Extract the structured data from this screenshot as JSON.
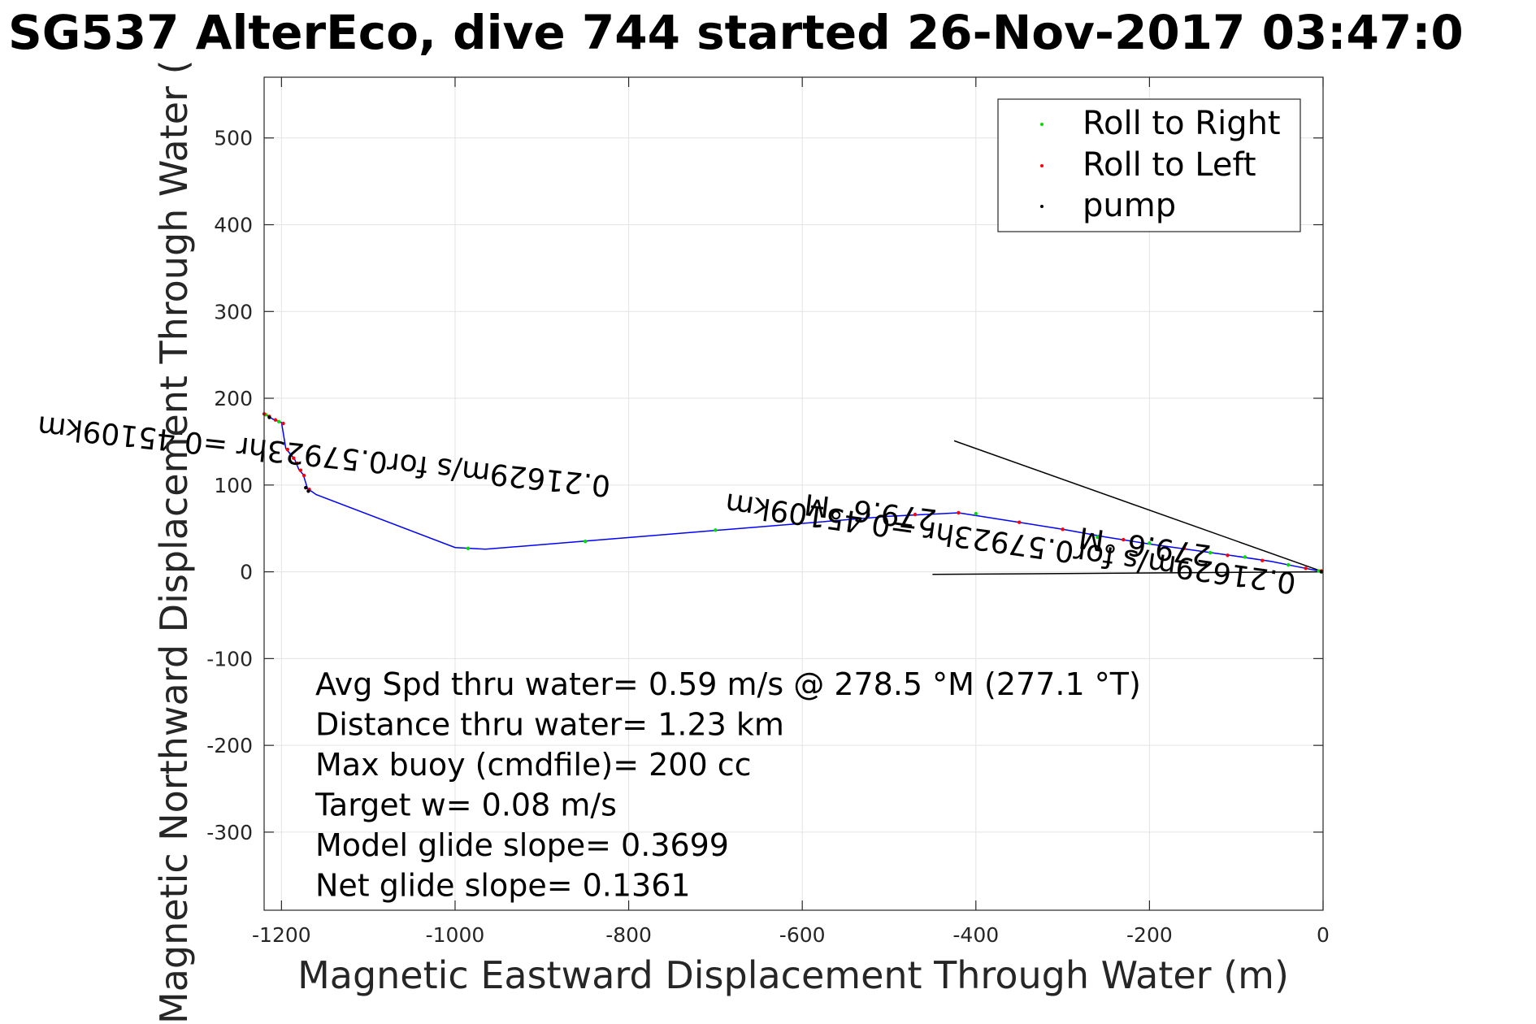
{
  "chart_data": {
    "type": "scatter",
    "title": "SG537 AlterEco, dive 744 started 26-Nov-2017 03:47:0",
    "xlabel": "Magnetic Eastward Displacement Through Water (m)",
    "ylabel": "Magnetic Northward Displacement Through Water (",
    "xlim": [
      -1220,
      0
    ],
    "ylim": [
      -390,
      570
    ],
    "xticks": [
      -1200,
      -1000,
      -800,
      -600,
      -400,
      -200,
      0
    ],
    "yticks": [
      -300,
      -200,
      -100,
      0,
      100,
      200,
      300,
      400,
      500
    ],
    "xtick_labels": [
      "-1200",
      "-1000",
      "-800",
      "-600",
      "-400",
      "-200",
      "0"
    ],
    "ytick_labels": [
      "-300",
      "-200",
      "-100",
      "0",
      "100",
      "200",
      "300",
      "400",
      "500"
    ],
    "grid": true,
    "legend_position": "top-right",
    "legend": [
      {
        "label": "Roll to Right",
        "color": "#00dd00"
      },
      {
        "label": "Roll to Left",
        "color": "#ff0000"
      },
      {
        "label": "pump",
        "color": "#000000"
      }
    ],
    "track": {
      "color": "#0000ff",
      "points": [
        [
          -1219,
          182
        ],
        [
          -1210,
          176
        ],
        [
          -1200,
          172
        ],
        [
          -1195,
          142
        ],
        [
          -1185,
          130
        ],
        [
          -1180,
          118
        ],
        [
          -1175,
          112
        ],
        [
          -1170,
          96
        ],
        [
          -1160,
          89
        ],
        [
          -1000,
          28
        ],
        [
          -965,
          26
        ],
        [
          -500,
          64
        ],
        [
          -420,
          68
        ],
        [
          -350,
          57
        ],
        [
          -300,
          49
        ],
        [
          -250,
          40
        ],
        [
          -200,
          32
        ],
        [
          -150,
          25
        ],
        [
          -100,
          18
        ],
        [
          -60,
          12
        ],
        [
          -30,
          6
        ],
        [
          0,
          0
        ]
      ]
    },
    "roll_right": [
      [
        -1218,
        181
      ],
      [
        -1203,
        173
      ],
      [
        -985,
        27
      ],
      [
        -850,
        35
      ],
      [
        -700,
        48
      ],
      [
        -400,
        67
      ],
      [
        -260,
        40
      ],
      [
        -200,
        33
      ],
      [
        -130,
        22
      ],
      [
        -90,
        17
      ],
      [
        -40,
        8
      ],
      [
        -5,
        1
      ]
    ],
    "roll_left": [
      [
        -1220,
        182
      ],
      [
        -1214,
        179
      ],
      [
        -1207,
        175
      ],
      [
        -1198,
        171
      ],
      [
        -1193,
        141
      ],
      [
        -1186,
        131
      ],
      [
        -1182,
        125
      ],
      [
        -1178,
        117
      ],
      [
        -1174,
        111
      ],
      [
        -1168,
        95
      ],
      [
        -470,
        66
      ],
      [
        -420,
        68
      ],
      [
        -350,
        57
      ],
      [
        -300,
        49
      ],
      [
        -230,
        37
      ],
      [
        -160,
        27
      ],
      [
        -110,
        19
      ],
      [
        -70,
        13
      ],
      [
        -20,
        4
      ],
      [
        -2,
        1
      ]
    ],
    "pump": [
      [
        -1172,
        97
      ],
      [
        -1169,
        93
      ],
      [
        -1214,
        178
      ],
      [
        -2,
        0
      ]
    ],
    "heading_lines": [
      {
        "x": [
          -425,
          0
        ],
        "y": [
          151,
          0
        ]
      },
      {
        "x": [
          -450,
          0
        ],
        "y": [
          -3,
          0
        ]
      }
    ],
    "rotated_labels": [
      {
        "text": "279.6 °M",
        "x": -444,
        "y": 71,
        "angle": 187
      },
      {
        "text": "0.21629m/s for0.57923hr =0.45109km",
        "x": -820,
        "y": 110,
        "angle": 186
      },
      {
        "text": "279.6 °M",
        "x": -128,
        "y": 30,
        "angle": 188
      },
      {
        "text": "0.21629m/s for0.57923hr =0.45109km",
        "x": -30,
        "y": -2,
        "angle": 188
      }
    ],
    "annotations": [
      "Avg Spd thru water=  0.59 m/s @ 278.5 °M (277.1 °T)",
      "Distance thru water=  1.23 km",
      "Max buoy (cmdfile)= 200 cc",
      "Target w= 0.08 m/s",
      "Model glide slope= 0.3699",
      "Net glide slope= 0.1361"
    ]
  }
}
